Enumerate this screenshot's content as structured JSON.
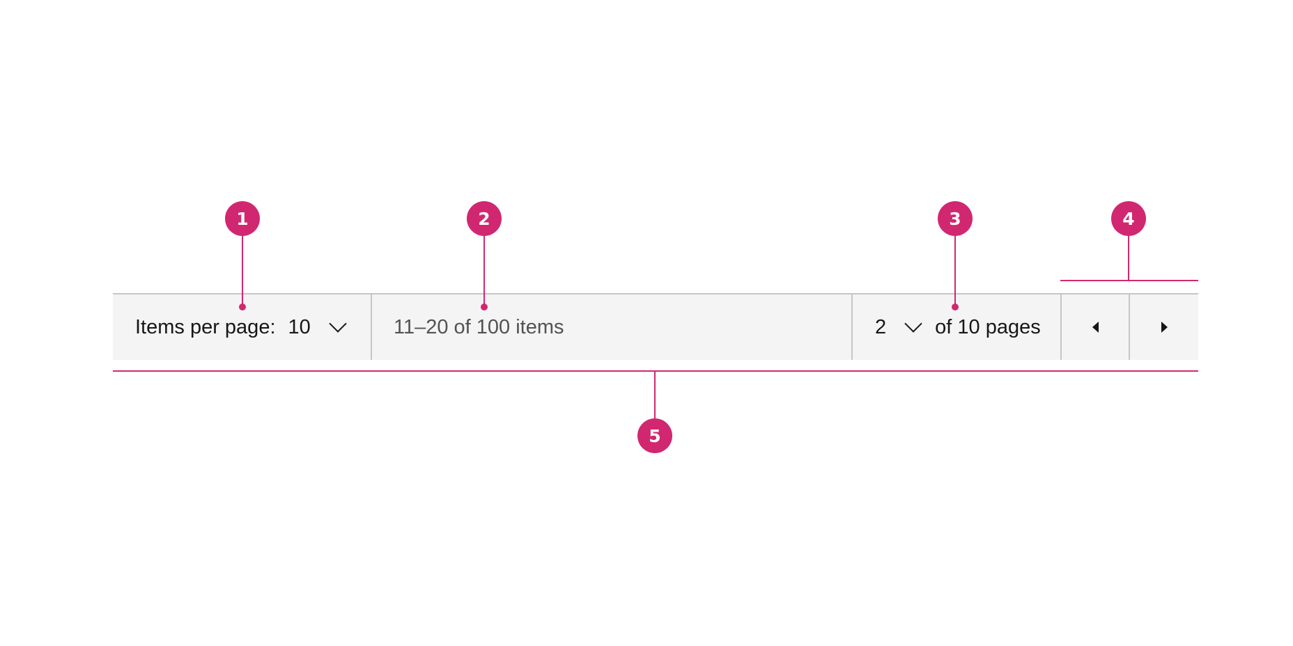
{
  "pagination": {
    "items_per_page_label": "Items per page:",
    "items_per_page_value": "10",
    "range_text": "11–20 of 100 items",
    "current_page": "2",
    "page_total_text": "of 10 pages",
    "prev_icon": "caret-left-icon",
    "next_icon": "caret-right-icon"
  },
  "callouts": [
    {
      "label": "1"
    },
    {
      "label": "2"
    },
    {
      "label": "3"
    },
    {
      "label": "4"
    },
    {
      "label": "5"
    }
  ],
  "colors": {
    "accent": "#d12771",
    "bar_background": "#f4f4f4",
    "divider": "#c6c6c6",
    "text_primary": "#161616",
    "text_secondary": "#525252"
  }
}
